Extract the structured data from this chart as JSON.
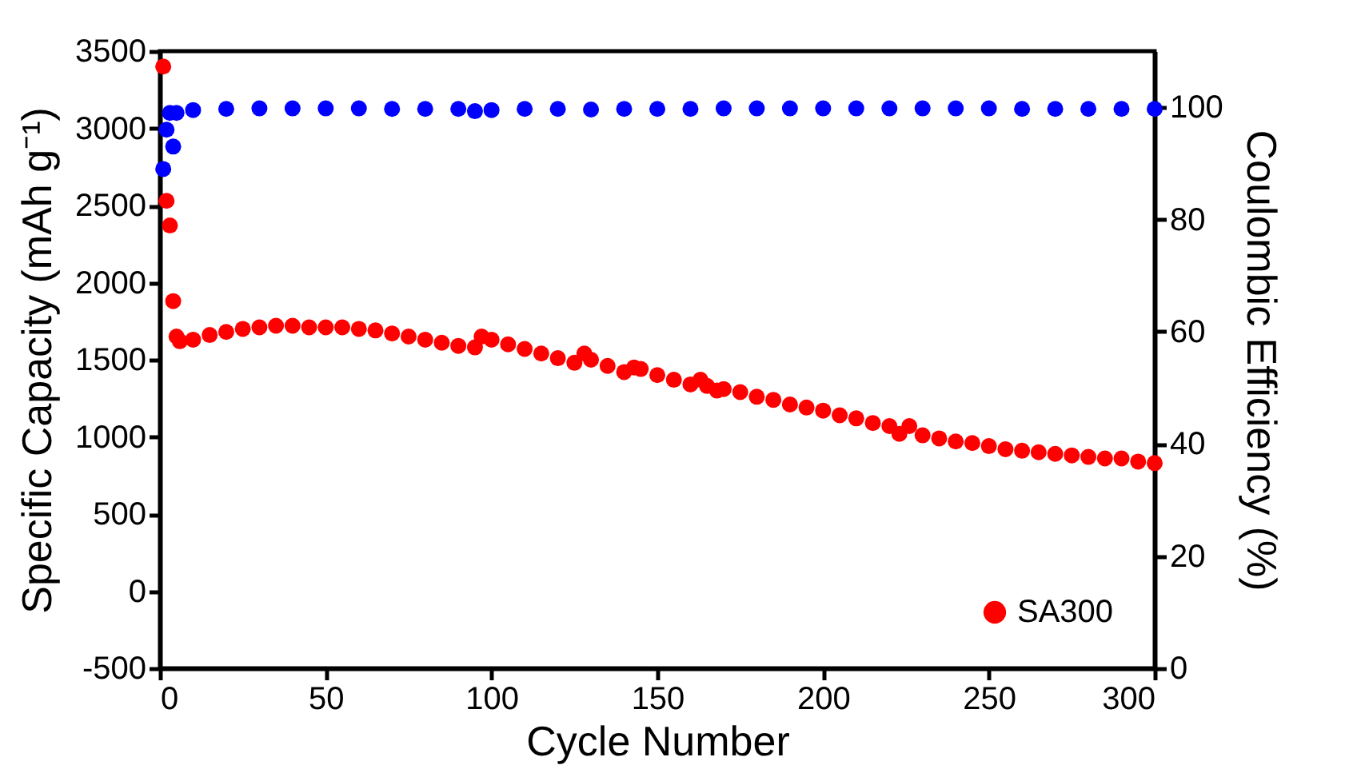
{
  "chart_data": {
    "type": "scatter",
    "xlabel": "Cycle Number",
    "ylabel": "Specific Capacity (mAh g⁻¹)",
    "y2label": "Coulombic Efficiency (%)",
    "xlim": [
      0,
      300
    ],
    "xticks": [
      0,
      50,
      100,
      150,
      200,
      250,
      300
    ],
    "ylim": [
      -500,
      3500
    ],
    "yticks": [
      -500,
      0,
      500,
      1000,
      1500,
      2000,
      2500,
      3000,
      3500
    ],
    "y2lim": [
      0,
      110
    ],
    "y2ticks": [
      0,
      20,
      40,
      60,
      80,
      100
    ],
    "grid": false,
    "legend": "bottom right",
    "marker": "circle",
    "series": [
      {
        "name": "SA300",
        "color": "#ff0000",
        "x": [
          1,
          2,
          3,
          4,
          5,
          6,
          10,
          15,
          20,
          25,
          30,
          35,
          40,
          45,
          50,
          55,
          60,
          65,
          70,
          75,
          80,
          85,
          90,
          95,
          97,
          100,
          105,
          110,
          115,
          120,
          125,
          128,
          130,
          135,
          140,
          143,
          145,
          150,
          155,
          160,
          163,
          165,
          168,
          170,
          175,
          180,
          185,
          190,
          195,
          200,
          205,
          210,
          215,
          220,
          223,
          226,
          230,
          235,
          240,
          245,
          250,
          255,
          260,
          265,
          270,
          275,
          280,
          285,
          290,
          295,
          300
        ],
        "values": [
          3400,
          2530,
          2370,
          1880,
          1650,
          1620,
          1630,
          1660,
          1680,
          1700,
          1710,
          1720,
          1720,
          1710,
          1710,
          1710,
          1700,
          1690,
          1670,
          1650,
          1630,
          1610,
          1590,
          1580,
          1650,
          1630,
          1600,
          1570,
          1540,
          1510,
          1480,
          1540,
          1500,
          1460,
          1420,
          1450,
          1440,
          1400,
          1370,
          1340,
          1370,
          1330,
          1300,
          1310,
          1290,
          1260,
          1240,
          1210,
          1190,
          1170,
          1140,
          1120,
          1090,
          1070,
          1020,
          1070,
          1010,
          990,
          970,
          960,
          940,
          920,
          910,
          900,
          890,
          880,
          870,
          860,
          860,
          840,
          830
        ]
      },
      {
        "color": "#0000ff",
        "axis": "y2",
        "x": [
          1,
          2,
          3,
          4,
          5,
          10,
          20,
          30,
          40,
          50,
          60,
          70,
          80,
          90,
          95,
          100,
          110,
          120,
          130,
          140,
          150,
          160,
          170,
          180,
          190,
          200,
          210,
          220,
          230,
          240,
          250,
          260,
          270,
          280,
          290,
          300
        ],
        "values": [
          89,
          96,
          99,
          93,
          99,
          99.5,
          99.7,
          99.8,
          99.8,
          99.8,
          99.8,
          99.7,
          99.7,
          99.7,
          99.3,
          99.5,
          99.7,
          99.7,
          99.6,
          99.7,
          99.7,
          99.7,
          99.8,
          99.8,
          99.8,
          99.8,
          99.8,
          99.8,
          99.8,
          99.8,
          99.8,
          99.7,
          99.7,
          99.7,
          99.7,
          99.7
        ]
      }
    ]
  }
}
